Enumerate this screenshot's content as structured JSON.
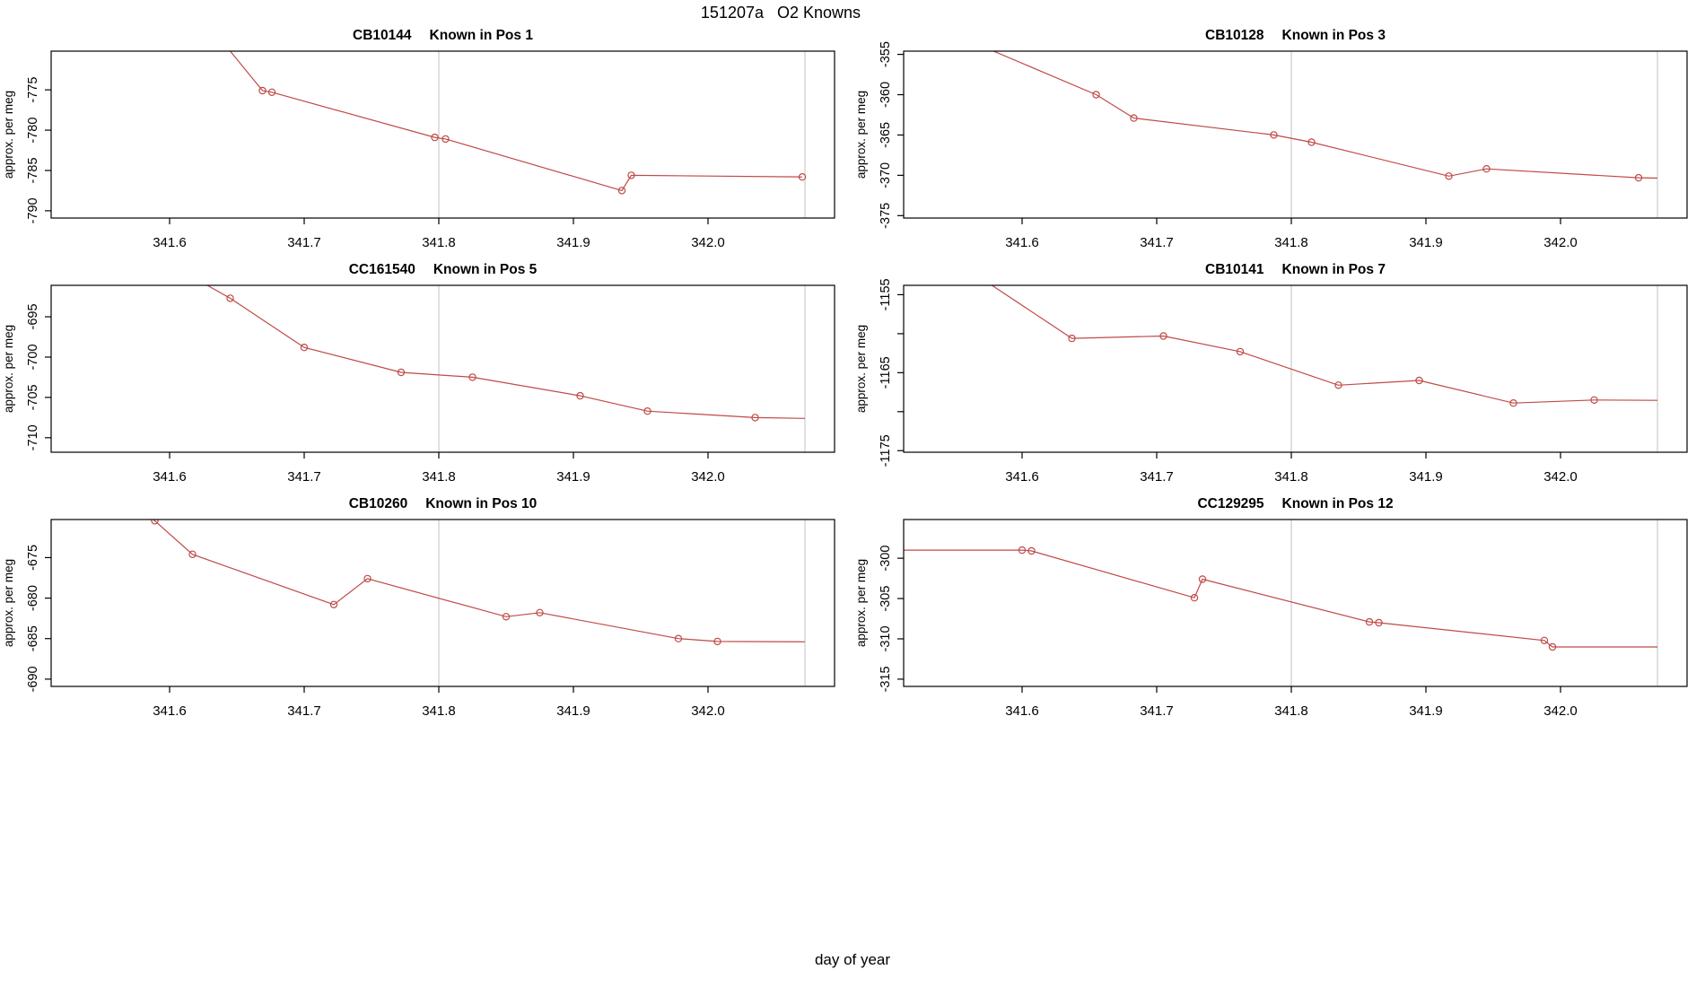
{
  "figure_title": "151207a   O2 Knowns",
  "chart_data": {
    "type": "line",
    "title": "151207a   O2 Knowns",
    "xlabel": "day of year",
    "ylabel": "approx. per meg",
    "line_color": "#bf4a47",
    "grid_color": "#cccccc",
    "frame_color": "#000000",
    "xlim": [
      341.512,
      342.094
    ],
    "x_tick_values": [
      341.6,
      341.7,
      341.8,
      341.9,
      342.0
    ],
    "x_tick_labels": [
      "341.6",
      "341.7",
      "341.8",
      "341.9",
      "342.0"
    ],
    "vlines": [
      341.8,
      342.072
    ],
    "legend": "none",
    "grid": "vertical reference lines only",
    "panels": [
      {
        "sample": "CB10144",
        "position_label": "Known in Pos 1",
        "ylim": [
          -790.9,
          -770.2
        ],
        "y_ticks": [
          -790,
          -785,
          -780,
          -775
        ],
        "y_minor_ticks": [],
        "pre": [
          341.6,
          -761.0
        ],
        "points": [
          [
            341.669,
            -775.1
          ],
          [
            341.676,
            -775.3
          ],
          [
            341.797,
            -780.9
          ],
          [
            341.805,
            -781.1
          ],
          [
            341.936,
            -787.5
          ],
          [
            341.943,
            -785.6
          ],
          [
            342.07,
            -785.8
          ]
        ],
        "post": null
      },
      {
        "sample": "CB10128",
        "position_label": "Known in Pos 3",
        "ylim": [
          -375.3,
          -354.6
        ],
        "y_ticks": [
          -375,
          -370,
          -365,
          -360,
          -355
        ],
        "y_minor_ticks": [],
        "pre": [
          341.535,
          -351.5
        ],
        "points": [
          [
            341.655,
            -360.0
          ],
          [
            341.683,
            -362.9
          ],
          [
            341.787,
            -365.0
          ],
          [
            341.815,
            -365.9
          ],
          [
            341.917,
            -370.1
          ],
          [
            341.945,
            -369.2
          ],
          [
            342.058,
            -370.3
          ]
        ],
        "post": [
          342.072,
          -370.35
        ]
      },
      {
        "sample": "CC161540",
        "position_label": "Known in Pos 5",
        "ylim": [
          -711.8,
          -691.1
        ],
        "y_ticks": [
          -710,
          -705,
          -700,
          -695
        ],
        "y_minor_ticks": [],
        "pre": [
          341.59,
          -687.5
        ],
        "points": [
          [
            341.645,
            -692.7
          ],
          [
            341.7,
            -698.8
          ],
          [
            341.772,
            -701.9
          ],
          [
            341.825,
            -702.5
          ],
          [
            341.905,
            -704.8
          ],
          [
            341.955,
            -706.7
          ],
          [
            342.035,
            -707.5
          ]
        ],
        "post": [
          342.072,
          -707.6
        ]
      },
      {
        "sample": "CB10141",
        "position_label": "Known in Pos 7",
        "ylim": [
          -1175.2,
          -1153.8
        ],
        "y_ticks": [
          -1175,
          -1165,
          -1155
        ],
        "y_minor_ticks": [
          -1170,
          -1160
        ],
        "pre": [
          341.54,
          -1149.5
        ],
        "points": [
          [
            341.637,
            -1160.6
          ],
          [
            341.705,
            -1160.3
          ],
          [
            341.762,
            -1162.3
          ],
          [
            341.835,
            -1166.6
          ],
          [
            341.895,
            -1166.0
          ],
          [
            341.965,
            -1168.9
          ],
          [
            342.025,
            -1168.5
          ]
        ],
        "post": [
          342.072,
          -1168.55
        ]
      },
      {
        "sample": "CB10260",
        "position_label": "Known in Pos 10",
        "ylim": [
          -690.9,
          -670.3
        ],
        "y_ticks": [
          -690,
          -685,
          -680,
          -675
        ],
        "y_minor_ticks": [],
        "pre": [
          341.565,
          -666.5
        ],
        "points": [
          [
            341.589,
            -670.45
          ],
          [
            341.617,
            -674.6
          ],
          [
            341.722,
            -680.8
          ],
          [
            341.747,
            -677.6
          ],
          [
            341.85,
            -682.3
          ],
          [
            341.875,
            -681.8
          ],
          [
            341.978,
            -685.0
          ],
          [
            342.007,
            -685.35
          ]
        ],
        "post": [
          342.072,
          -685.4
        ]
      },
      {
        "sample": "CC129295",
        "position_label": "Known in Pos 12",
        "ylim": [
          -315.9,
          -295.2
        ],
        "y_ticks": [
          -315,
          -310,
          -305,
          -300
        ],
        "y_minor_ticks": [],
        "pre": [
          341.512,
          -299.0
        ],
        "points": [
          [
            341.6,
            -299.0
          ],
          [
            341.607,
            -299.1
          ],
          [
            341.728,
            -304.9
          ],
          [
            341.734,
            -302.6
          ],
          [
            341.858,
            -307.9
          ],
          [
            341.865,
            -308.0
          ],
          [
            341.988,
            -310.2
          ],
          [
            341.994,
            -311.0
          ]
        ],
        "post": [
          342.072,
          -311.0
        ]
      }
    ]
  }
}
